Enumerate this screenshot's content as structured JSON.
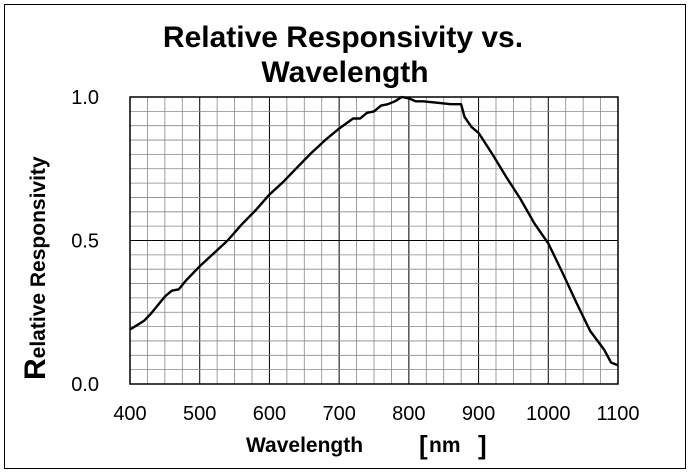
{
  "chart_data": {
    "type": "line",
    "title_line1": "Relative Responsivity  vs.",
    "title_line2": "Wavelength",
    "xlabel": "Wavelength",
    "xlabel_unit": "nm",
    "ylabel_first": "R",
    "ylabel_rest": "elative Responsivity",
    "xlim": [
      400,
      1100
    ],
    "ylim": [
      0,
      1.0
    ],
    "x_ticks": [
      "400",
      "500",
      "600",
      "700",
      "800",
      "900",
      "1000",
      "1100"
    ],
    "y_ticks": [
      "0.0",
      "0.5",
      "1.0"
    ],
    "grid": true,
    "line_color": "#000000",
    "series": [
      {
        "x": [
          400,
          410,
          420,
          430,
          440,
          450,
          460,
          470,
          480,
          490,
          500,
          520,
          540,
          560,
          580,
          600,
          620,
          640,
          660,
          680,
          700,
          720,
          730,
          740,
          750,
          760,
          770,
          780,
          790,
          800,
          810,
          820,
          840,
          860,
          875,
          880,
          890,
          900,
          920,
          940,
          960,
          980,
          1000,
          1020,
          1040,
          1060,
          1080,
          1090,
          1100
        ],
        "y": [
          0.19,
          0.205,
          0.22,
          0.245,
          0.275,
          0.305,
          0.325,
          0.33,
          0.36,
          0.385,
          0.41,
          0.455,
          0.5,
          0.555,
          0.605,
          0.66,
          0.705,
          0.755,
          0.805,
          0.85,
          0.89,
          0.925,
          0.925,
          0.945,
          0.95,
          0.97,
          0.975,
          0.985,
          1.0,
          0.995,
          0.985,
          0.985,
          0.98,
          0.975,
          0.975,
          0.93,
          0.895,
          0.875,
          0.8,
          0.72,
          0.645,
          0.56,
          0.49,
          0.39,
          0.285,
          0.185,
          0.12,
          0.075,
          0.065
        ]
      }
    ]
  }
}
